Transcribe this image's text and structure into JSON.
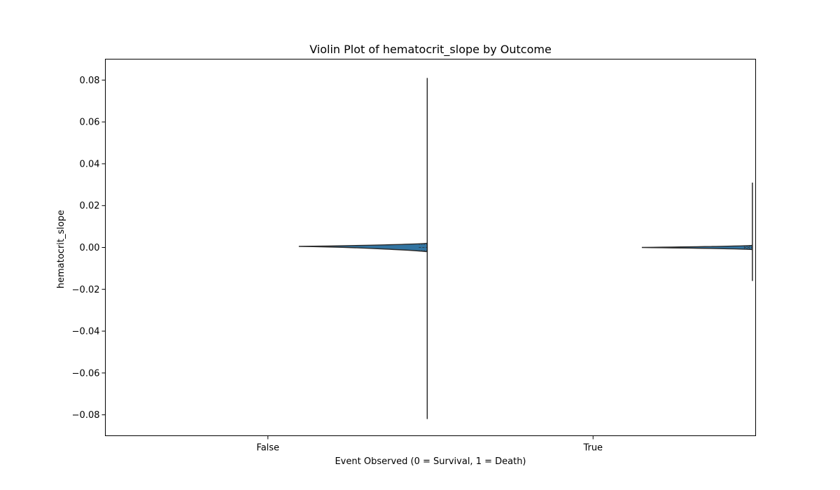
{
  "chart_data": {
    "type": "violin",
    "title": "Violin Plot of hematocrit_slope by Outcome",
    "xlabel": "Event Observed (0 = Survival, 1 = Death)",
    "ylabel": "hematocrit_slope",
    "categories": [
      "False",
      "True"
    ],
    "ylim": [
      -0.09,
      0.09
    ],
    "yticks": [
      0.08,
      0.06,
      0.04,
      0.02,
      0.0,
      -0.02,
      -0.04,
      -0.06,
      -0.08
    ],
    "ytick_labels": [
      "0.08",
      "0.06",
      "0.04",
      "0.02",
      "0.00",
      "−0.02",
      "−0.04",
      "−0.06",
      "−0.08"
    ],
    "grid": false,
    "violins": [
      {
        "category": "False",
        "min": -0.082,
        "max": 0.081,
        "median": 0.0,
        "q1": -0.0015,
        "q3": 0.0015,
        "tip": 0.0005
      },
      {
        "category": "True",
        "min": -0.016,
        "max": 0.031,
        "median": 0.0,
        "q1": -0.0005,
        "q3": 0.0005,
        "tip": 0.0
      }
    ],
    "fill_color": "#3274a1",
    "line_color": "#2b2b2b"
  }
}
